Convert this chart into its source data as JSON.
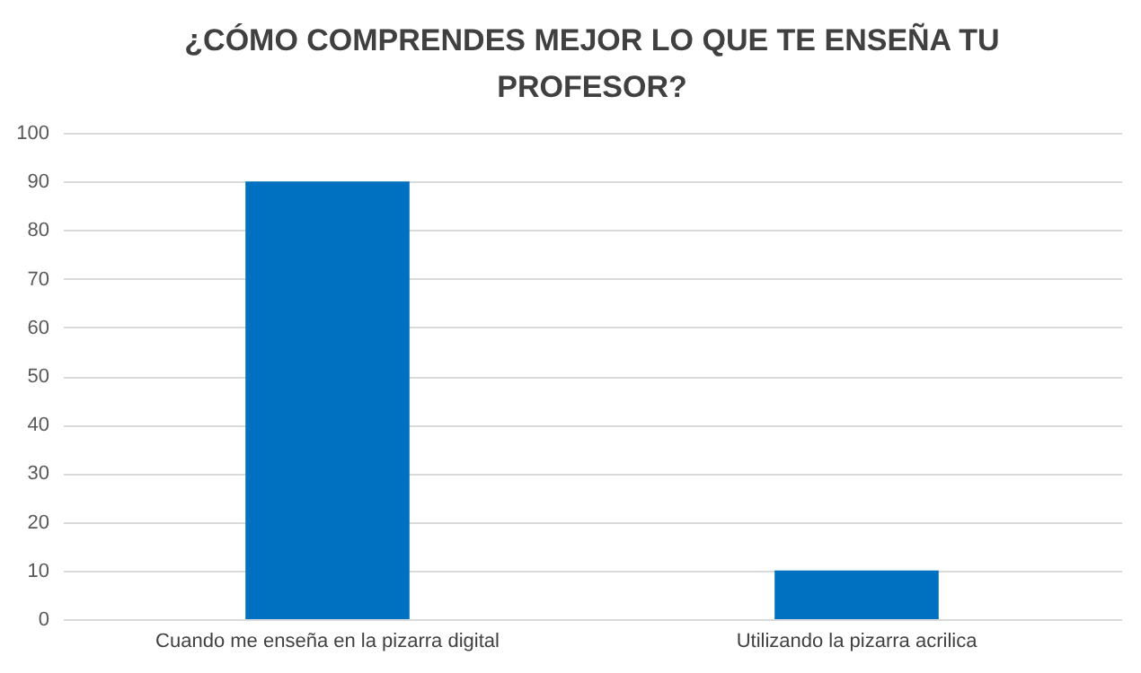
{
  "chart_data": {
    "type": "bar",
    "title": "¿CÓMO COMPRENDES MEJOR LO QUE TE ENSEÑA TU PROFESOR?",
    "categories": [
      "Cuando me enseña en la pizarra digital",
      "Utilizando la pizarra acrilica"
    ],
    "values": [
      90,
      10
    ],
    "color": "#0070c0",
    "ylim": [
      0,
      100
    ],
    "yticks": [
      0,
      10,
      20,
      30,
      40,
      50,
      60,
      70,
      80,
      90,
      100
    ],
    "grid": "y"
  }
}
